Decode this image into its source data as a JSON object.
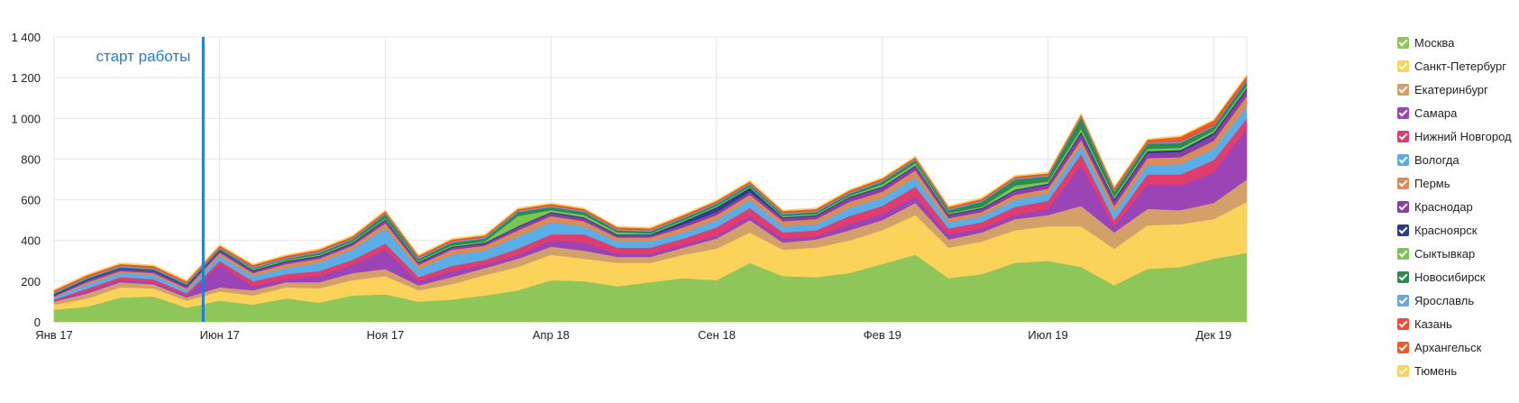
{
  "chart_data": {
    "type": "area",
    "stacked": true,
    "grid": true,
    "legend_position": "right",
    "ylim": [
      0,
      1400
    ],
    "y_ticks": [
      "0",
      "200",
      "400",
      "600",
      "800",
      "1 000",
      "1 200",
      "1 400"
    ],
    "x_ticks": [
      {
        "label": "Янв 17",
        "index": 0
      },
      {
        "label": "Июн 17",
        "index": 5
      },
      {
        "label": "Ноя 17",
        "index": 10
      },
      {
        "label": "Апр 18",
        "index": 15
      },
      {
        "label": "Сен 18",
        "index": 20
      },
      {
        "label": "Фев 19",
        "index": 25
      },
      {
        "label": "Июл 19",
        "index": 30
      },
      {
        "label": "Дек 19",
        "index": 35
      }
    ],
    "x_range": [
      0,
      36
    ],
    "annotation": {
      "text": "старт работы",
      "index": 4.5
    },
    "series": [
      {
        "name": "Москва",
        "color": "#8fc65a",
        "values": [
          60,
          75,
          120,
          125,
          70,
          105,
          85,
          115,
          95,
          130,
          135,
          100,
          110,
          130,
          155,
          205,
          200,
          175,
          195,
          215,
          205,
          290,
          225,
          220,
          240,
          285,
          330,
          215,
          235,
          290,
          300,
          270,
          180,
          260,
          270,
          310,
          340
        ]
      },
      {
        "name": "Санкт-Петербург",
        "color": "#fbd35a",
        "values": [
          25,
          40,
          50,
          40,
          35,
          45,
          45,
          55,
          70,
          75,
          90,
          55,
          75,
          100,
          115,
          125,
          110,
          115,
          95,
          115,
          155,
          150,
          130,
          145,
          160,
          165,
          195,
          150,
          160,
          160,
          170,
          200,
          180,
          215,
          210,
          195,
          250
        ]
      },
      {
        "name": "Екатеринбург",
        "color": "#d4a06a",
        "values": [
          15,
          25,
          25,
          20,
          15,
          20,
          25,
          25,
          30,
          35,
          35,
          25,
          35,
          35,
          40,
          40,
          40,
          30,
          30,
          35,
          50,
          60,
          35,
          40,
          50,
          50,
          60,
          40,
          45,
          55,
          55,
          100,
          80,
          80,
          70,
          80,
          110
        ]
      },
      {
        "name": "Самара",
        "color": "#9b44b6",
        "values": [
          5,
          10,
          10,
          10,
          10,
          110,
          20,
          15,
          30,
          40,
          95,
          20,
          30,
          15,
          20,
          30,
          40,
          15,
          15,
          15,
          15,
          20,
          20,
          15,
          30,
          30,
          30,
          25,
          20,
          20,
          30,
          200,
          30,
          120,
          120,
          150,
          250
        ]
      },
      {
        "name": "Нижний Новгород",
        "color": "#e03c6e",
        "values": [
          5,
          15,
          15,
          15,
          10,
          20,
          25,
          25,
          25,
          25,
          30,
          20,
          25,
          25,
          30,
          30,
          40,
          30,
          30,
          30,
          40,
          40,
          30,
          30,
          40,
          40,
          50,
          30,
          30,
          40,
          40,
          55,
          30,
          50,
          55,
          60,
          50
        ]
      },
      {
        "name": "Вологда",
        "color": "#5aaee8",
        "values": [
          10,
          20,
          20,
          20,
          15,
          25,
          25,
          30,
          40,
          50,
          75,
          40,
          55,
          45,
          60,
          60,
          40,
          30,
          30,
          30,
          35,
          40,
          30,
          30,
          40,
          40,
          45,
          30,
          30,
          35,
          35,
          40,
          40,
          45,
          50,
          55,
          60
        ]
      },
      {
        "name": "Пермь",
        "color": "#d98b5a",
        "values": [
          5,
          10,
          10,
          10,
          10,
          15,
          15,
          20,
          20,
          20,
          25,
          20,
          25,
          25,
          30,
          30,
          25,
          20,
          20,
          25,
          25,
          25,
          25,
          25,
          30,
          30,
          35,
          20,
          20,
          25,
          25,
          30,
          30,
          35,
          35,
          40,
          50
        ]
      },
      {
        "name": "Краснодар",
        "color": "#8a3ea8",
        "values": [
          5,
          10,
          10,
          10,
          10,
          10,
          10,
          10,
          10,
          10,
          15,
          10,
          10,
          10,
          15,
          15,
          15,
          10,
          10,
          15,
          15,
          15,
          15,
          15,
          20,
          20,
          20,
          15,
          15,
          20,
          20,
          30,
          25,
          25,
          25,
          30,
          30
        ]
      },
      {
        "name": "Красноярск",
        "color": "#27408b",
        "values": [
          5,
          5,
          5,
          5,
          5,
          5,
          5,
          5,
          5,
          5,
          5,
          5,
          5,
          5,
          5,
          5,
          5,
          5,
          5,
          15,
          25,
          20,
          5,
          5,
          5,
          5,
          5,
          5,
          5,
          5,
          5,
          10,
          10,
          10,
          10,
          10,
          10
        ]
      },
      {
        "name": "Сыктывкар",
        "color": "#7cc552",
        "values": [
          0,
          0,
          0,
          0,
          0,
          0,
          5,
          5,
          5,
          5,
          5,
          5,
          5,
          5,
          50,
          10,
          10,
          10,
          5,
          5,
          5,
          5,
          5,
          5,
          5,
          10,
          10,
          5,
          5,
          20,
          10,
          15,
          10,
          10,
          10,
          10,
          10
        ]
      },
      {
        "name": "Новосибирск",
        "color": "#2e8a4e",
        "values": [
          5,
          5,
          5,
          5,
          5,
          5,
          5,
          5,
          10,
          10,
          20,
          10,
          15,
          15,
          20,
          15,
          15,
          10,
          10,
          10,
          10,
          10,
          10,
          10,
          10,
          15,
          15,
          15,
          25,
          30,
          25,
          55,
          25,
          25,
          25,
          20,
          25
        ]
      },
      {
        "name": "Ярославль",
        "color": "#64a8e0",
        "values": [
          5,
          5,
          5,
          5,
          5,
          5,
          5,
          5,
          5,
          5,
          5,
          5,
          5,
          5,
          5,
          5,
          5,
          5,
          5,
          5,
          5,
          5,
          5,
          5,
          5,
          5,
          5,
          5,
          5,
          5,
          5,
          5,
          5,
          5,
          5,
          5,
          5
        ]
      },
      {
        "name": "Казань",
        "color": "#ef4b3c",
        "values": [
          5,
          5,
          5,
          5,
          5,
          5,
          5,
          5,
          5,
          5,
          5,
          5,
          5,
          5,
          5,
          5,
          5,
          5,
          5,
          5,
          5,
          5,
          5,
          5,
          5,
          5,
          5,
          5,
          5,
          5,
          5,
          5,
          5,
          5,
          10,
          10,
          10
        ]
      },
      {
        "name": "Архангельск",
        "color": "#f05a28",
        "values": [
          5,
          5,
          5,
          5,
          5,
          5,
          5,
          5,
          5,
          5,
          5,
          5,
          5,
          5,
          5,
          5,
          5,
          5,
          5,
          5,
          5,
          5,
          5,
          5,
          5,
          5,
          5,
          5,
          5,
          5,
          5,
          5,
          10,
          10,
          15,
          15,
          10
        ]
      },
      {
        "name": "Тюмень",
        "color": "#fbd35a",
        "values": [
          5,
          5,
          5,
          5,
          5,
          5,
          5,
          5,
          5,
          5,
          5,
          5,
          5,
          5,
          5,
          5,
          5,
          5,
          5,
          5,
          5,
          5,
          5,
          5,
          5,
          5,
          5,
          5,
          5,
          5,
          5,
          5,
          5,
          5,
          5,
          5,
          5
        ]
      }
    ]
  }
}
